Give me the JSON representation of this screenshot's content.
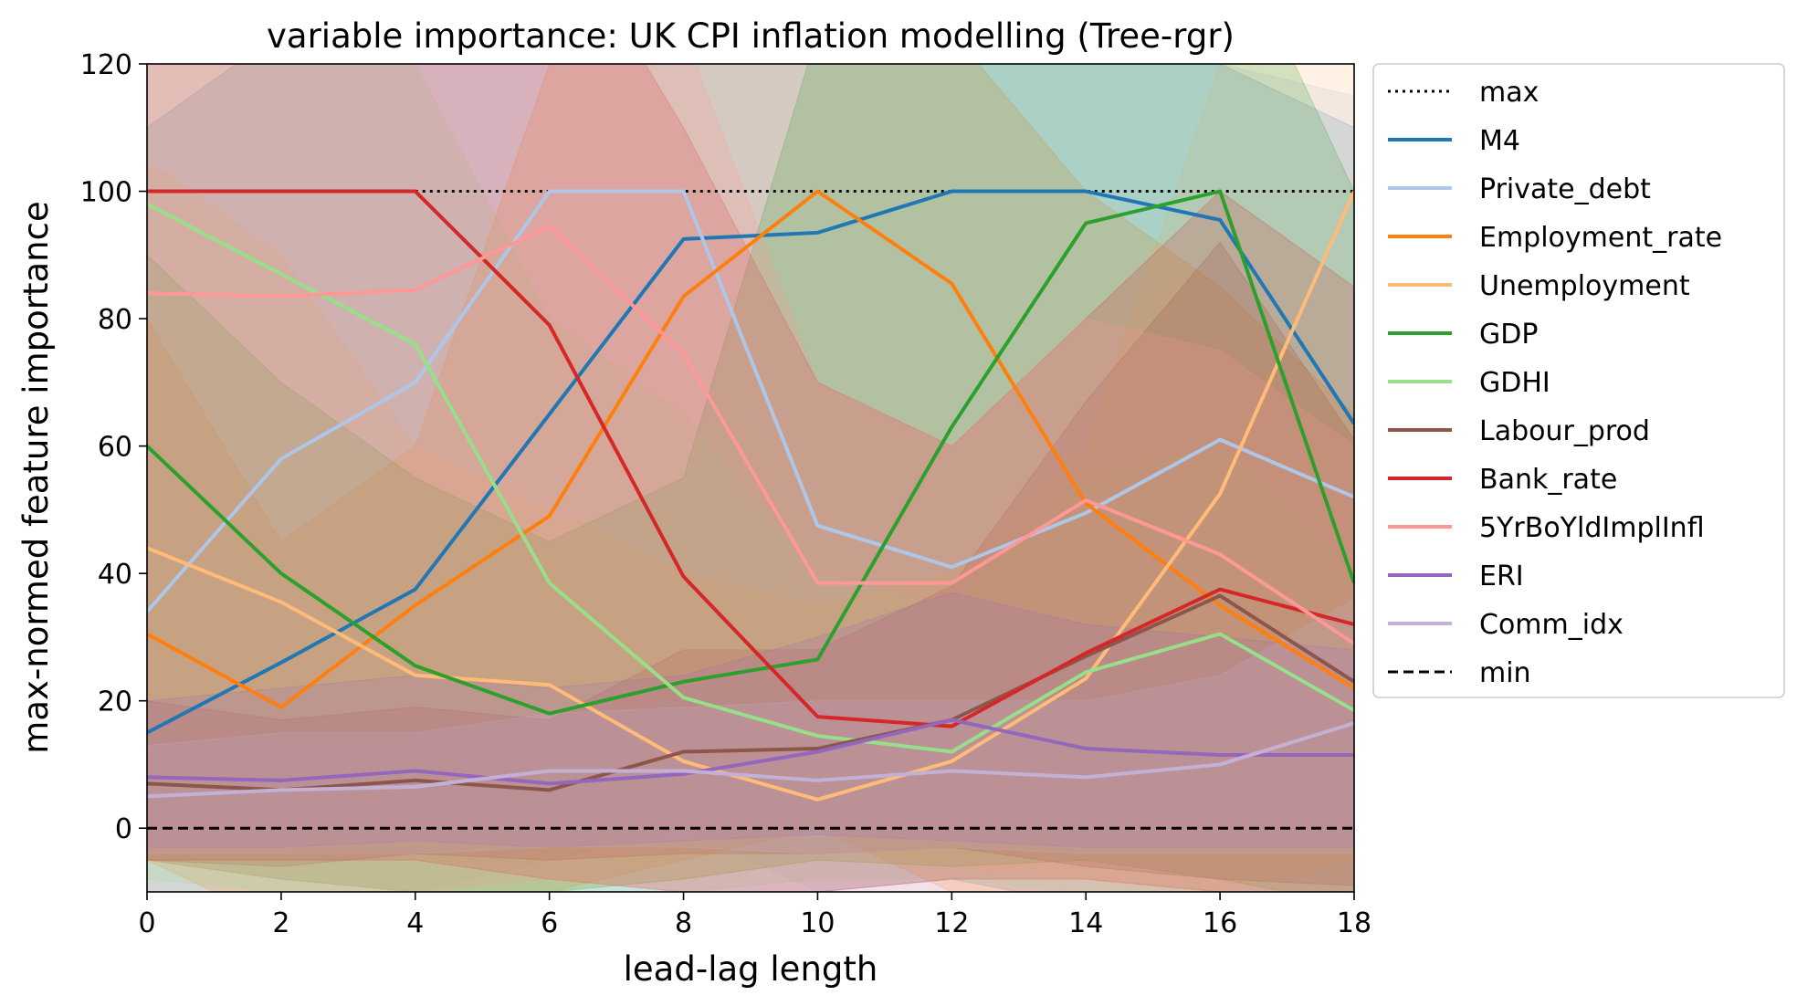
{
  "chart_data": {
    "type": "line",
    "title": "variable importance: UK CPI inflation modelling (Tree-rgr)",
    "xlabel": "lead-lag length",
    "ylabel": "max-normed feature importance",
    "xlim": [
      0,
      18
    ],
    "ylim": [
      -10,
      120
    ],
    "xticks": [
      0,
      2,
      4,
      6,
      8,
      10,
      12,
      14,
      16,
      18
    ],
    "yticks": [
      0,
      20,
      40,
      60,
      80,
      100,
      120
    ],
    "grid": false,
    "legend_position": "outside-right",
    "x": [
      0,
      2,
      4,
      6,
      8,
      10,
      12,
      14,
      16,
      18
    ],
    "reference_lines": [
      {
        "name": "max",
        "y": 100,
        "x_from": 4,
        "x_to": 18,
        "style": "dotted",
        "color": "#000000"
      },
      {
        "name": "min",
        "y": 0,
        "x_from": 0,
        "x_to": 18,
        "style": "dashed",
        "color": "#000000"
      }
    ],
    "series": [
      {
        "name": "M4",
        "color": "#1f77b4",
        "values": [
          15,
          26,
          37.5,
          65,
          92.5,
          93.5,
          100,
          100,
          95.5,
          63.5
        ],
        "band_upper": [
          110,
          125,
          130,
          130,
          130,
          135,
          140,
          140,
          120,
          110
        ],
        "band_lower": [
          -15,
          -15,
          -12,
          -10,
          -10,
          -10,
          -8,
          -12,
          -15,
          -20
        ]
      },
      {
        "name": "Private_debt",
        "color": "#aec7e8",
        "values": [
          34,
          58,
          70,
          100,
          100,
          47.5,
          41,
          49.5,
          61,
          52
        ],
        "band_upper": [
          125,
          130,
          125,
          150,
          150,
          130,
          125,
          130,
          120,
          115
        ],
        "band_lower": [
          -10,
          -15,
          -10,
          -5,
          0,
          -10,
          -10,
          -12,
          -15,
          -10
        ]
      },
      {
        "name": "Employment_rate",
        "color": "#ff7f0e",
        "values": [
          30.5,
          19,
          35,
          49,
          83.5,
          100,
          85.5,
          51,
          35,
          22
        ],
        "band_upper": [
          80,
          45,
          60,
          120,
          125,
          145,
          125,
          100,
          85,
          65
        ],
        "band_lower": [
          -5,
          -15,
          -10,
          -10,
          -5,
          0,
          -10,
          -12,
          -12,
          -15
        ]
      },
      {
        "name": "Unemployment",
        "color": "#ffbb78",
        "values": [
          44,
          35.5,
          24,
          22.5,
          10.5,
          4.5,
          10.5,
          23.5,
          52.5,
          100
        ],
        "band_upper": [
          105,
          90,
          60,
          50,
          40,
          35,
          40,
          60,
          120,
          140
        ],
        "band_lower": [
          -10,
          -12,
          -12,
          -10,
          -8,
          -5,
          -6,
          -8,
          -10,
          -5
        ]
      },
      {
        "name": "GDP",
        "color": "#2ca02c",
        "values": [
          60,
          40,
          25.5,
          18,
          23,
          26.5,
          63,
          95,
          100,
          38.5
        ],
        "band_upper": [
          90,
          70,
          55,
          45,
          55,
          125,
          120,
          140,
          145,
          100
        ],
        "band_lower": [
          -5,
          -8,
          -10,
          -10,
          -8,
          -5,
          -6,
          -5,
          -8,
          -12
        ]
      },
      {
        "name": "GDHI",
        "color": "#98df8a",
        "values": [
          98,
          87,
          76,
          38.5,
          20.5,
          14.5,
          12,
          24.5,
          30.5,
          18.5
        ],
        "band_upper": [
          125,
          125,
          120,
          80,
          65,
          40,
          35,
          55,
          60,
          40
        ],
        "band_lower": [
          -8,
          -10,
          -12,
          -12,
          -10,
          -8,
          -8,
          -10,
          -10,
          -10
        ]
      },
      {
        "name": "Labour_prod",
        "color": "#8c564b",
        "values": [
          7,
          6,
          7.5,
          6,
          12,
          12.5,
          17,
          27,
          36.5,
          23
        ],
        "band_upper": [
          20,
          17,
          19,
          17,
          28,
          28,
          38,
          67,
          92,
          61
        ],
        "band_lower": [
          -5,
          -6,
          -4,
          -5,
          -4,
          -4,
          -3,
          -6,
          -8,
          -9
        ]
      },
      {
        "name": "Bank_rate",
        "color": "#d62728",
        "values": [
          100,
          100,
          100,
          79,
          39.5,
          17.5,
          16,
          27.5,
          37.5,
          32
        ],
        "band_upper": [
          140,
          145,
          150,
          145,
          110,
          70,
          60,
          80,
          100,
          85
        ],
        "band_lower": [
          -5,
          -5,
          -5,
          -8,
          -10,
          -10,
          -8,
          -8,
          -10,
          -12
        ]
      },
      {
        "name": "5YrBoYldImplInfl",
        "color": "#ff9896",
        "values": [
          84,
          83.5,
          84.5,
          94.5,
          74.5,
          38.5,
          38.5,
          51.5,
          43,
          29
        ],
        "band_upper": [
          125,
          125,
          125,
          130,
          125,
          70,
          60,
          80,
          75,
          60
        ],
        "band_lower": [
          -5,
          -8,
          -10,
          -8,
          -10,
          -10,
          -10,
          -10,
          -10,
          -12
        ]
      },
      {
        "name": "ERI",
        "color": "#9467bd",
        "values": [
          8,
          7.5,
          9,
          7,
          8.5,
          12,
          17,
          12.5,
          11.5,
          11.5
        ],
        "band_upper": [
          20,
          22,
          24,
          22,
          24,
          30,
          37,
          32,
          30,
          28
        ],
        "band_lower": [
          -3,
          -3,
          -2,
          -3,
          -2,
          -1,
          -2,
          -3,
          -3,
          -3
        ]
      },
      {
        "name": "Comm_idx",
        "color": "#c5b0d5",
        "values": [
          5,
          6,
          6.5,
          9,
          9,
          7.5,
          9,
          8,
          10,
          16.5
        ],
        "band_upper": [
          13,
          15,
          15,
          18,
          19,
          20,
          20,
          20,
          24,
          36
        ],
        "band_lower": [
          -4,
          -4,
          -4,
          -3,
          -3,
          -4,
          -3,
          -4,
          -4,
          -4
        ]
      }
    ],
    "legend": [
      {
        "label": "max",
        "kind": "dotted",
        "color": "#000000"
      },
      {
        "label": "M4",
        "kind": "solid",
        "color": "#1f77b4"
      },
      {
        "label": "Private_debt",
        "kind": "solid",
        "color": "#aec7e8"
      },
      {
        "label": "Employment_rate",
        "kind": "solid",
        "color": "#ff7f0e"
      },
      {
        "label": "Unemployment",
        "kind": "solid",
        "color": "#ffbb78"
      },
      {
        "label": "GDP",
        "kind": "solid",
        "color": "#2ca02c"
      },
      {
        "label": "GDHI",
        "kind": "solid",
        "color": "#98df8a"
      },
      {
        "label": "Labour_prod",
        "kind": "solid",
        "color": "#8c564b"
      },
      {
        "label": "Bank_rate",
        "kind": "solid",
        "color": "#d62728"
      },
      {
        "label": "5YrBoYldImplInfl",
        "kind": "solid",
        "color": "#ff9896"
      },
      {
        "label": "ERI",
        "kind": "solid",
        "color": "#9467bd"
      },
      {
        "label": "Comm_idx",
        "kind": "solid",
        "color": "#c5b0d5"
      },
      {
        "label": "min",
        "kind": "dashed",
        "color": "#000000"
      }
    ]
  }
}
